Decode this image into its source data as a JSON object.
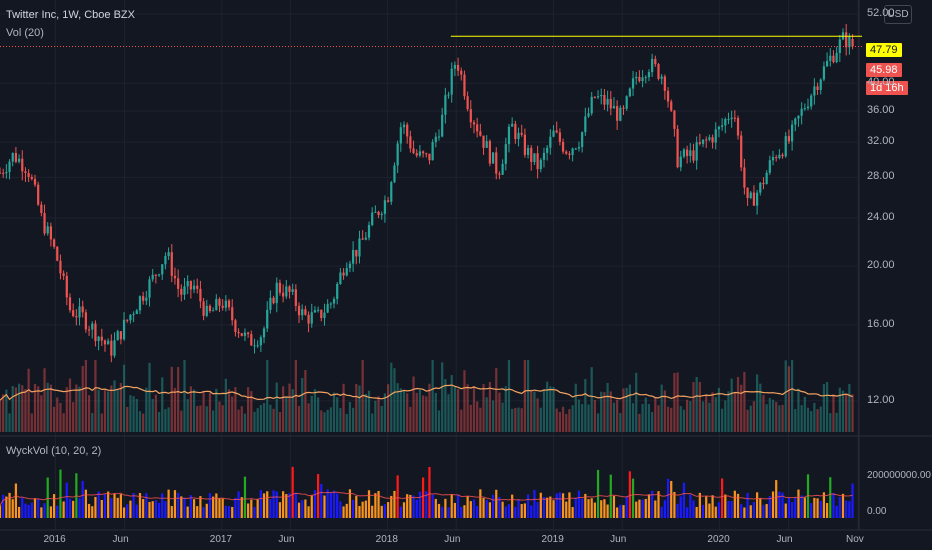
{
  "header": {
    "symbol": "Twitter Inc, 1W, Cboe BZX",
    "volume_study": "Vol (20)",
    "indicator": "WyckVol (10, 20, 2)"
  },
  "currency_button": "USD",
  "price_axis": {
    "ticks": [
      "52.00",
      "40.00",
      "36.00",
      "32.00",
      "28.00",
      "24.00",
      "20.00",
      "16.00",
      "12.00"
    ]
  },
  "indicator_axis": {
    "ticks": [
      "200000000.00",
      "0.00"
    ]
  },
  "tags": {
    "resistance": "47.79",
    "last_price": "45.98",
    "countdown": "1d 16h"
  },
  "time_axis": {
    "labels": [
      "2016",
      "Jun",
      "2017",
      "Jun",
      "2018",
      "Jun",
      "2019",
      "Jun",
      "2020",
      "Jun",
      "Nov"
    ]
  },
  "colors": {
    "background": "#131722",
    "up": "#26a69a",
    "down": "#ef5350",
    "volume_ma": "#f4a460",
    "resistance_line": "#ffff00",
    "wyck_orange": "#f7931e",
    "wyck_blue": "#1a1aff",
    "wyck_green": "#22aa22",
    "wyck_red": "#ff1a1a"
  },
  "chart_data": [
    {
      "type": "candlestick",
      "title": "Twitter Inc, 1W, Cboe BZX",
      "x_range": [
        "2015-09",
        "2020-11"
      ],
      "ylim": [
        10,
        53
      ],
      "scale": "log",
      "ticks": [
        12,
        16,
        20,
        24,
        28,
        32,
        36,
        40,
        52
      ],
      "resistance_level": 47.79,
      "last_price": 45.98,
      "weekly_close_anchors": [
        [
          "2015-09-01",
          28.5
        ],
        [
          "2015-10-01",
          30.5
        ],
        [
          "2015-11-01",
          29.0
        ],
        [
          "2015-12-01",
          24.0
        ],
        [
          "2016-01-01",
          21.0
        ],
        [
          "2016-02-01",
          17.0
        ],
        [
          "2016-03-01",
          16.5
        ],
        [
          "2016-04-01",
          15.5
        ],
        [
          "2016-05-01",
          14.5
        ],
        [
          "2016-06-01",
          16.0
        ],
        [
          "2016-07-01",
          17.5
        ],
        [
          "2016-08-01",
          19.0
        ],
        [
          "2016-09-01",
          21.0
        ],
        [
          "2016-10-01",
          18.0
        ],
        [
          "2016-11-01",
          18.5
        ],
        [
          "2016-12-01",
          16.5
        ],
        [
          "2017-01-01",
          17.5
        ],
        [
          "2017-02-01",
          16.0
        ],
        [
          "2017-03-01",
          15.0
        ],
        [
          "2017-04-01",
          15.5
        ],
        [
          "2017-05-01",
          18.5
        ],
        [
          "2017-06-01",
          18.0
        ],
        [
          "2017-07-01",
          16.5
        ],
        [
          "2017-08-01",
          16.5
        ],
        [
          "2017-09-01",
          17.5
        ],
        [
          "2017-10-01",
          20.5
        ],
        [
          "2017-11-01",
          21.5
        ],
        [
          "2017-12-01",
          24.0
        ],
        [
          "2018-01-01",
          26.0
        ],
        [
          "2018-02-01",
          34.5
        ],
        [
          "2018-03-01",
          30.5
        ],
        [
          "2018-04-01",
          30.0
        ],
        [
          "2018-05-01",
          35.0
        ],
        [
          "2018-06-01",
          44.0
        ],
        [
          "2018-07-01",
          36.0
        ],
        [
          "2018-08-01",
          32.0
        ],
        [
          "2018-09-01",
          28.5
        ],
        [
          "2018-10-01",
          34.0
        ],
        [
          "2018-11-01",
          31.0
        ],
        [
          "2018-12-01",
          29.0
        ],
        [
          "2019-01-01",
          33.0
        ],
        [
          "2019-02-01",
          31.0
        ],
        [
          "2019-03-01",
          32.5
        ],
        [
          "2019-04-01",
          38.0
        ],
        [
          "2019-05-01",
          37.0
        ],
        [
          "2019-06-01",
          35.0
        ],
        [
          "2019-07-01",
          41.0
        ],
        [
          "2019-08-01",
          43.0
        ],
        [
          "2019-09-01",
          41.0
        ],
        [
          "2019-10-01",
          30.0
        ],
        [
          "2019-11-01",
          30.5
        ],
        [
          "2019-12-01",
          32.0
        ],
        [
          "2020-01-01",
          33.5
        ],
        [
          "2020-02-01",
          36.5
        ],
        [
          "2020-03-01",
          25.0
        ],
        [
          "2020-04-01",
          27.0
        ],
        [
          "2020-05-01",
          30.5
        ],
        [
          "2020-06-01",
          32.0
        ],
        [
          "2020-07-01",
          36.0
        ],
        [
          "2020-08-01",
          40.0
        ],
        [
          "2020-09-01",
          44.0
        ],
        [
          "2020-10-01",
          47.5
        ],
        [
          "2020-10-23",
          45.98
        ]
      ]
    },
    {
      "type": "bar",
      "title": "Vol (20)",
      "series": [
        {
          "name": "Vol (20)",
          "values": "weekly volume bars colored by candle direction"
        }
      ],
      "moving_average": "20-period"
    },
    {
      "type": "bar",
      "title": "WyckVol (10, 20, 2)",
      "yticks": [
        0,
        200000000
      ],
      "colors_used": [
        "orange",
        "blue",
        "green",
        "red"
      ]
    }
  ]
}
